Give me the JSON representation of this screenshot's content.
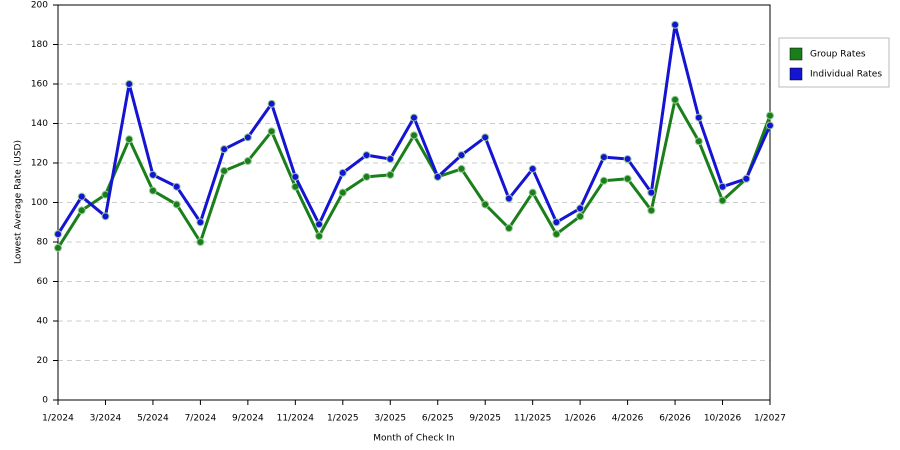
{
  "chart_data": {
    "type": "line",
    "x_label": "Month of Check In",
    "y_label": "Lowest Average Rate (USD)",
    "categories": [
      "1/2024",
      null,
      "3/2024",
      null,
      "5/2024",
      null,
      "7/2024",
      null,
      "9/2024",
      null,
      "11/2024",
      null,
      "1/2025",
      null,
      "3/2025",
      null,
      "6/2025",
      null,
      "9/2025",
      null,
      "11/2025",
      null,
      "1/2026",
      null,
      "4/2026",
      null,
      "6/2026",
      null,
      "10/2026",
      null,
      "1/2027"
    ],
    "series": [
      {
        "name": "Group Rates",
        "color": "#1a7f1a",
        "values": [
          77,
          96,
          104,
          132,
          106,
          99,
          80,
          116,
          121,
          136,
          108,
          83,
          105,
          113,
          114,
          134,
          113,
          117,
          99,
          87,
          105,
          84,
          93,
          111,
          112,
          96,
          152,
          131,
          101,
          112,
          144
        ]
      },
      {
        "name": "Individual Rates",
        "color": "#1414d2",
        "values": [
          84,
          103,
          93,
          160,
          114,
          108,
          90,
          127,
          133,
          150,
          113,
          89,
          115,
          124,
          122,
          143,
          113,
          124,
          133,
          102,
          117,
          90,
          97,
          123,
          122,
          105,
          190,
          143,
          108,
          112,
          139
        ]
      }
    ],
    "ylim": [
      0,
      200
    ],
    "yticks": [
      0,
      20,
      40,
      60,
      80,
      100,
      120,
      140,
      160,
      180,
      200
    ],
    "grid": true,
    "legend": "right"
  }
}
